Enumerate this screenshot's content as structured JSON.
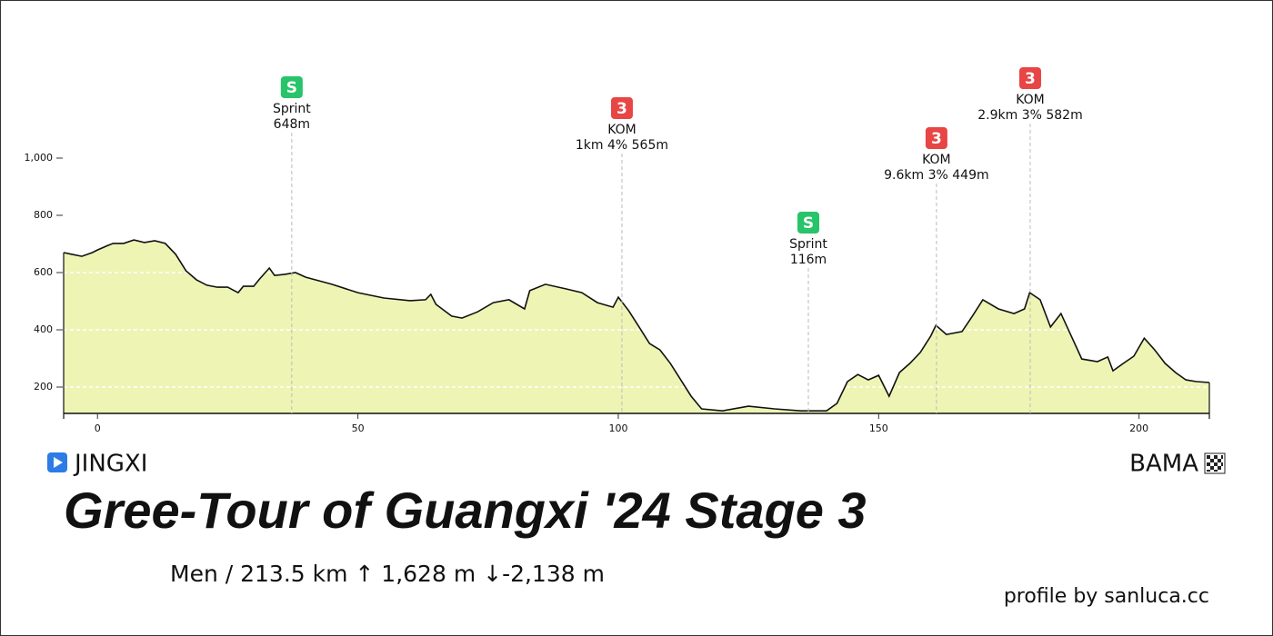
{
  "chart_data": {
    "type": "elevation-profile",
    "title": "Gree-Tour of Guangxi '24 Stage 3",
    "subtitle": "Men / 213.5 km  ↑ 1,628 m  ↓-2,138 m",
    "start": "JINGXI",
    "finish": "BAMA",
    "credit": "profile by sanluca.cc",
    "fill_color": "#eef4b4",
    "line_color": "#111111",
    "grid": true,
    "xlim": [
      -6.5,
      213.5
    ],
    "ylim": [
      108,
      1200
    ],
    "xticks": [
      0,
      50,
      100,
      150,
      200
    ],
    "yticks": [
      200,
      400,
      600,
      800,
      {
        "value": 1000,
        "label": "1,000"
      }
    ],
    "x": [
      -6.5,
      -5,
      -3,
      -1,
      0,
      2,
      3,
      5,
      7,
      9,
      11,
      13,
      15,
      17,
      19,
      21,
      23,
      25,
      27,
      28,
      30,
      31,
      33,
      34,
      36,
      38,
      40,
      45,
      50,
      55,
      60,
      63,
      64,
      65,
      68,
      70,
      73,
      76,
      79,
      82,
      83,
      86,
      90,
      93,
      96,
      99,
      100,
      102,
      104,
      106,
      108,
      110,
      112,
      114,
      116,
      120,
      125,
      130,
      135,
      140,
      142,
      144,
      146,
      148,
      150,
      152,
      154,
      156,
      158,
      160,
      161,
      163,
      166,
      168,
      170,
      173,
      176,
      178,
      179,
      181,
      183,
      185,
      187,
      189,
      192,
      194,
      195,
      197,
      199,
      201,
      203,
      205,
      207,
      209,
      211,
      213.5
    ],
    "values": [
      670,
      664,
      657,
      670,
      679,
      695,
      702,
      702,
      714,
      705,
      711,
      702,
      664,
      606,
      575,
      556,
      549,
      549,
      530,
      552,
      552,
      575,
      616,
      590,
      594,
      600,
      584,
      559,
      530,
      511,
      502,
      505,
      524,
      489,
      448,
      441,
      463,
      495,
      505,
      473,
      537,
      559,
      543,
      530,
      495,
      479,
      514,
      467,
      410,
      352,
      330,
      283,
      225,
      168,
      124,
      117,
      133,
      124,
      117,
      117,
      143,
      219,
      244,
      225,
      241,
      168,
      251,
      283,
      321,
      378,
      416,
      384,
      394,
      448,
      505,
      473,
      457,
      473,
      530,
      505,
      410,
      457,
      378,
      298,
      289,
      305,
      257,
      283,
      308,
      371,
      330,
      283,
      251,
      225,
      219,
      216
    ],
    "markers": [
      {
        "km": 37.3,
        "icon": "S",
        "label": "Sprint",
        "detail": "648m",
        "color": "#27c46a"
      },
      {
        "km": 100.7,
        "icon": "3",
        "label": "KOM",
        "detail": "1km 4% 565m",
        "color": "#e84545"
      },
      {
        "km": 136.5,
        "icon": "S",
        "label": "Sprint",
        "detail": "116m",
        "color": "#27c46a"
      },
      {
        "km": 161.1,
        "icon": "3",
        "label": "KOM",
        "detail": "9.6km 3% 449m",
        "color": "#e84545"
      },
      {
        "km": 179.1,
        "icon": "3",
        "label": "KOM",
        "detail": "2.9km 3% 582m",
        "color": "#e84545"
      }
    ]
  }
}
